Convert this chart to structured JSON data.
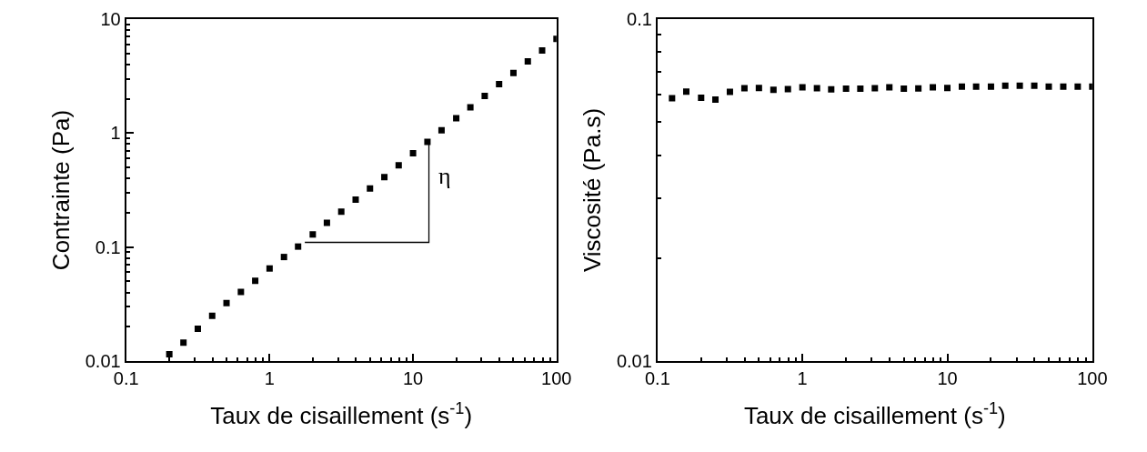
{
  "chart_data": [
    {
      "type": "scatter",
      "xlabel": "Taux de cisaillement (s$^{-1}$)",
      "ylabel": "Contrainte (Pa)",
      "log": "xy",
      "xlim": [
        0.1,
        100
      ],
      "ylim": [
        0.01,
        10
      ],
      "xticks": [
        0.1,
        1,
        10,
        100
      ],
      "yticks": [
        0.01,
        0.1,
        1,
        10
      ],
      "marker": "square",
      "series": [
        {
          "color": "#000000",
          "x": [
            0.2,
            0.251,
            0.316,
            0.398,
            0.501,
            0.631,
            0.794,
            1,
            1.26,
            1.58,
            2,
            2.51,
            3.16,
            3.98,
            5.01,
            6.31,
            7.94,
            10,
            12.6,
            15.8,
            20,
            25.1,
            31.6,
            39.8,
            50.1,
            63.1,
            79.4,
            100
          ],
          "values": [
            0.0115,
            0.0145,
            0.0192,
            0.0249,
            0.0322,
            0.0404,
            0.0506,
            0.0649,
            0.0818,
            0.101,
            0.129,
            0.163,
            0.204,
            0.261,
            0.327,
            0.411,
            0.521,
            0.665,
            0.839,
            1.06,
            1.35,
            1.68,
            2.12,
            2.69,
            3.36,
            4.25,
            5.3,
            6.7
          ]
        },
        {
          "type": "line",
          "color": "#000000",
          "marker": "none",
          "x": [
            1.76,
            12.9,
            12.9
          ],
          "values": [
            0.11,
            0.11,
            0.8
          ]
        }
      ],
      "annotations": [
        "η"
      ]
    },
    {
      "type": "scatter",
      "xlabel": "Taux de cisaillement (s$^{-1}$)",
      "ylabel": "Viscosité (Pa.s)",
      "log": "xy",
      "xlim": [
        0.1,
        100
      ],
      "ylim": [
        0.01,
        0.1
      ],
      "xticks": [
        0.1,
        1,
        10,
        100
      ],
      "yticks": [
        0.01,
        0.1
      ],
      "marker": "square",
      "series": [
        {
          "color": "#000000",
          "x": [
            0.126,
            0.158,
            0.2,
            0.251,
            0.316,
            0.398,
            0.501,
            0.631,
            0.794,
            1,
            1.26,
            1.58,
            2,
            2.51,
            3.16,
            3.98,
            5.01,
            6.31,
            7.94,
            10,
            12.6,
            15.8,
            20,
            25.1,
            31.6,
            39.8,
            50.1,
            63.1,
            79.4,
            100
          ],
          "values": [
            0.0587,
            0.0614,
            0.0589,
            0.0582,
            0.0613,
            0.0628,
            0.0629,
            0.0621,
            0.0624,
            0.0632,
            0.0628,
            0.0623,
            0.0626,
            0.0626,
            0.0628,
            0.0632,
            0.0626,
            0.0627,
            0.0632,
            0.0629,
            0.0635,
            0.0635,
            0.0635,
            0.0639,
            0.0639,
            0.0639,
            0.0635,
            0.0635,
            0.0635,
            0.0635
          ]
        }
      ]
    }
  ]
}
